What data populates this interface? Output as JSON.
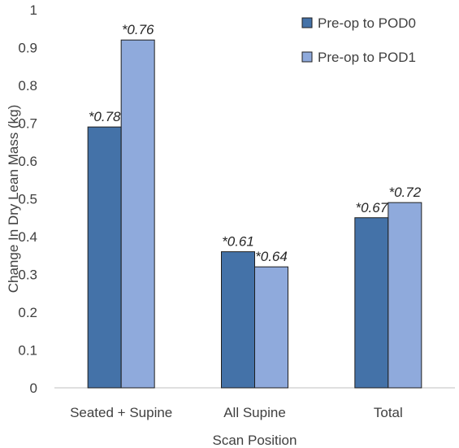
{
  "chart_data": {
    "type": "bar",
    "title": "",
    "xlabel": "Scan Position",
    "ylabel": "Change In Dry Lean Mass (kg)",
    "ylim": [
      0,
      1
    ],
    "yticks": [
      "0",
      "0.1",
      "0.2",
      "0.3",
      "0.4",
      "0.5",
      "0.6",
      "0.7",
      "0.8",
      "0.9",
      "1"
    ],
    "categories": [
      "Seated + Supine",
      "All Supine",
      "Total"
    ],
    "grid": false,
    "legend_position": "top-right",
    "series": [
      {
        "name": "Pre-op to POD0",
        "color": "#4472a8",
        "values": [
          0.69,
          0.36,
          0.45
        ],
        "labels": [
          "*0.78",
          "*0.61",
          "*0.67"
        ]
      },
      {
        "name": "Pre-op to POD1",
        "color": "#8faadc",
        "values": [
          0.92,
          0.32,
          0.49
        ],
        "labels": [
          "*0.76",
          "*0.64",
          "*0.72"
        ]
      }
    ]
  }
}
